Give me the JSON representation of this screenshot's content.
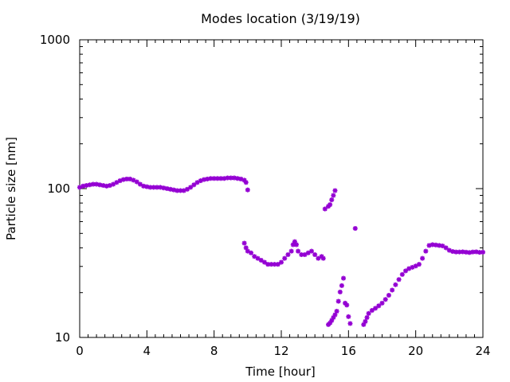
{
  "chart_data": {
    "type": "scatter",
    "title": "Modes location (3/19/19)",
    "xlabel": "Time [hour]",
    "ylabel": "Particle size [nm]",
    "xlim": [
      0,
      24
    ],
    "ylim": [
      10,
      1000
    ],
    "y_scale": "log",
    "grid": false,
    "marker_color": "#9400d3",
    "x_ticks": [
      0,
      4,
      8,
      12,
      16,
      20,
      24
    ],
    "x_tick_labels": [
      "0",
      "4",
      "8",
      "12",
      "16",
      "20",
      "24"
    ],
    "y_ticks": [
      10,
      100,
      1000
    ],
    "y_tick_labels": [
      "10",
      "100",
      "1000"
    ],
    "series": [
      {
        "points": [
          [
            0.0,
            102
          ],
          [
            0.2,
            104
          ],
          [
            0.4,
            105
          ],
          [
            0.6,
            106
          ],
          [
            0.8,
            107
          ],
          [
            1.0,
            107
          ],
          [
            1.2,
            106
          ],
          [
            1.4,
            105
          ],
          [
            1.6,
            104
          ],
          [
            1.8,
            105
          ],
          [
            2.0,
            107
          ],
          [
            2.2,
            110
          ],
          [
            2.4,
            113
          ],
          [
            2.6,
            115
          ],
          [
            2.8,
            116
          ],
          [
            3.0,
            116
          ],
          [
            3.2,
            114
          ],
          [
            3.4,
            111
          ],
          [
            3.6,
            107
          ],
          [
            3.8,
            104
          ],
          [
            4.0,
            103
          ],
          [
            4.2,
            102
          ],
          [
            4.4,
            102
          ],
          [
            4.6,
            102
          ],
          [
            4.8,
            102
          ],
          [
            5.0,
            101
          ],
          [
            5.2,
            100
          ],
          [
            5.4,
            99
          ],
          [
            5.6,
            98
          ],
          [
            5.8,
            97
          ],
          [
            6.0,
            97
          ],
          [
            6.2,
            97
          ],
          [
            6.4,
            99
          ],
          [
            6.6,
            102
          ],
          [
            6.8,
            106
          ],
          [
            7.0,
            110
          ],
          [
            7.2,
            113
          ],
          [
            7.4,
            115
          ],
          [
            7.6,
            116
          ],
          [
            7.8,
            117
          ],
          [
            8.0,
            117
          ],
          [
            8.2,
            117
          ],
          [
            8.4,
            117
          ],
          [
            8.6,
            117
          ],
          [
            8.8,
            118
          ],
          [
            9.0,
            118
          ],
          [
            9.2,
            118
          ],
          [
            9.4,
            117
          ],
          [
            9.6,
            116
          ],
          [
            9.8,
            114
          ],
          [
            9.9,
            110
          ],
          [
            10.0,
            98
          ],
          [
            9.8,
            43
          ],
          [
            9.9,
            40
          ],
          [
            10.0,
            38
          ],
          [
            10.2,
            37
          ],
          [
            10.4,
            35
          ],
          [
            10.6,
            34
          ],
          [
            10.8,
            33
          ],
          [
            11.0,
            32
          ],
          [
            11.2,
            31
          ],
          [
            11.4,
            31
          ],
          [
            11.6,
            31
          ],
          [
            11.8,
            31
          ],
          [
            12.0,
            32
          ],
          [
            12.2,
            34
          ],
          [
            12.4,
            36
          ],
          [
            12.6,
            38
          ],
          [
            12.7,
            42
          ],
          [
            12.8,
            44
          ],
          [
            12.9,
            42
          ],
          [
            13.0,
            38
          ],
          [
            13.2,
            36
          ],
          [
            13.4,
            36
          ],
          [
            13.6,
            37
          ],
          [
            13.8,
            38
          ],
          [
            14.0,
            36
          ],
          [
            14.2,
            34
          ],
          [
            14.4,
            35
          ],
          [
            14.5,
            34
          ],
          [
            14.6,
            73
          ],
          [
            14.8,
            76
          ],
          [
            14.9,
            78
          ],
          [
            15.0,
            84
          ],
          [
            15.1,
            90
          ],
          [
            15.2,
            97
          ],
          [
            14.8,
            12.2
          ],
          [
            14.9,
            12.5
          ],
          [
            15.0,
            13.0
          ],
          [
            15.1,
            13.6
          ],
          [
            15.2,
            14.2
          ],
          [
            15.3,
            15.0
          ],
          [
            15.4,
            17.5
          ],
          [
            15.5,
            20.2
          ],
          [
            15.6,
            22.3
          ],
          [
            15.7,
            25.0
          ],
          [
            15.8,
            17.0
          ],
          [
            15.9,
            16.5
          ],
          [
            16.0,
            13.8
          ],
          [
            16.1,
            12.4
          ],
          [
            16.4,
            54
          ],
          [
            16.9,
            12.2
          ],
          [
            17.0,
            12.8
          ],
          [
            17.1,
            13.6
          ],
          [
            17.2,
            14.5
          ],
          [
            17.4,
            15.2
          ],
          [
            17.6,
            15.7
          ],
          [
            17.8,
            16.3
          ],
          [
            18.0,
            17.0
          ],
          [
            18.2,
            18.0
          ],
          [
            18.4,
            19.2
          ],
          [
            18.6,
            20.8
          ],
          [
            18.8,
            22.6
          ],
          [
            19.0,
            24.5
          ],
          [
            19.2,
            26.5
          ],
          [
            19.4,
            28.0
          ],
          [
            19.6,
            29.0
          ],
          [
            19.8,
            29.6
          ],
          [
            20.0,
            30.2
          ],
          [
            20.2,
            31.0
          ],
          [
            20.4,
            34.0
          ],
          [
            20.6,
            38.0
          ],
          [
            20.8,
            41.5
          ],
          [
            21.0,
            42.0
          ],
          [
            21.2,
            41.8
          ],
          [
            21.4,
            41.5
          ],
          [
            21.6,
            41.2
          ],
          [
            21.8,
            40.0
          ],
          [
            22.0,
            38.5
          ],
          [
            22.2,
            37.8
          ],
          [
            22.4,
            37.5
          ],
          [
            22.6,
            37.5
          ],
          [
            22.8,
            37.6
          ],
          [
            23.0,
            37.4
          ],
          [
            23.2,
            37.2
          ],
          [
            23.4,
            37.5
          ],
          [
            23.6,
            37.6
          ],
          [
            23.8,
            37.3
          ],
          [
            24.0,
            37.4
          ]
        ]
      }
    ]
  }
}
